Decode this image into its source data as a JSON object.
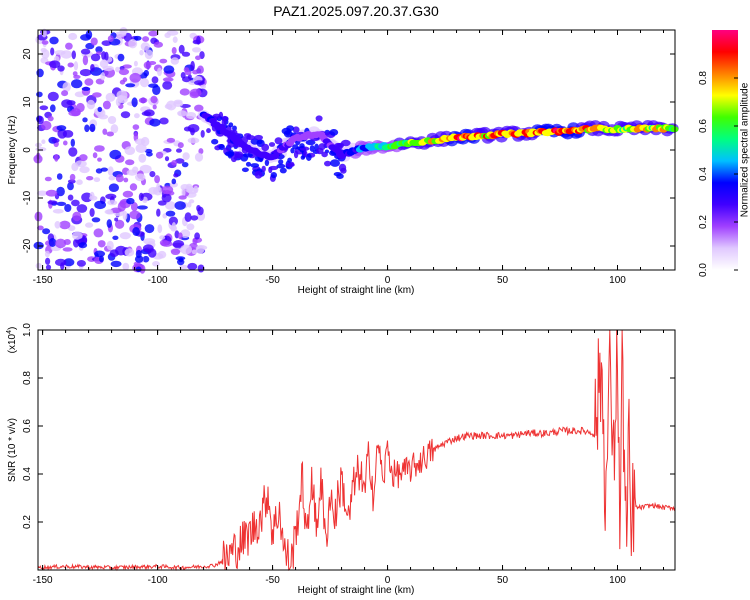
{
  "figure_title": "PAZ1.2025.097.20.37.G30",
  "chart_data": [
    {
      "type": "heatmap",
      "title": "PAZ1.2025.097.20.37.G30",
      "xlabel": "Height of straight line (km)",
      "ylabel": "Frequency (Hz)",
      "xlim": [
        -152,
        125
      ],
      "ylim": [
        -25,
        25
      ],
      "xticks": [
        -150,
        -100,
        -50,
        0,
        50,
        100
      ],
      "yticks": [
        -20,
        -10,
        0,
        10,
        20
      ],
      "xtick_labels": [
        "-150",
        "-100",
        "-50",
        "0",
        "50",
        "100"
      ],
      "ytick_labels": [
        "-20",
        "-10",
        "0",
        "10",
        "20"
      ],
      "noise_region_x": [
        -152,
        -80
      ],
      "signal_track": {
        "x": [
          -80,
          -70,
          -60,
          -50,
          -40,
          -30,
          -20,
          -10,
          0,
          10,
          20,
          30,
          40,
          50,
          60,
          70,
          80,
          90,
          100,
          110,
          125
        ],
        "freq": [
          7.5,
          3.5,
          0,
          -1.5,
          2.5,
          3.5,
          -1,
          0.5,
          0.8,
          1.5,
          2,
          2.6,
          3,
          3.3,
          3.5,
          3.8,
          4,
          4.5,
          4.3,
          4.5,
          4.5
        ],
        "amplitude": [
          0.35,
          0.3,
          0.3,
          0.3,
          0.2,
          0.2,
          0.3,
          0.45,
          0.6,
          0.7,
          0.8,
          0.95,
          0.9,
          0.9,
          0.9,
          0.92,
          0.95,
          0.85,
          0.7,
          0.8,
          0.75
        ]
      },
      "colorbar": {
        "label": "Normalized spectral amplitude",
        "range": [
          0,
          1
        ],
        "ticks": [
          0,
          0.2,
          0.4,
          0.6,
          0.8
        ],
        "tick_labels": [
          "0.0",
          "0.2",
          "0.4",
          "0.6",
          "0.8"
        ],
        "colormap": [
          "#ffffff",
          "#e0c8ff",
          "#a040ff",
          "#4000ff",
          "#0000ff",
          "#00c0ff",
          "#00ff80",
          "#40ff00",
          "#ffff00",
          "#ff8000",
          "#ff0000",
          "#ff0080"
        ]
      }
    },
    {
      "type": "line",
      "xlabel": "Height of straight line (km)",
      "ylabel": "SNR (10 * v/v)",
      "y_multiplier_label": "(x10",
      "y_multiplier_exp": "4",
      "y_multiplier_close": ")",
      "xlim": [
        -152,
        125
      ],
      "ylim": [
        0,
        1
      ],
      "xticks": [
        -150,
        -100,
        -50,
        0,
        50,
        100
      ],
      "yticks": [
        0.2,
        0.4,
        0.6,
        0.8,
        1.0
      ],
      "xtick_labels": [
        "-150",
        "-100",
        "-50",
        "0",
        "50",
        "100"
      ],
      "ytick_labels": [
        "0.2",
        "0.4",
        "0.6",
        "0.8",
        "1.0"
      ],
      "color": "#ee3333",
      "series": [
        {
          "x": [
            -152,
            -140,
            -120,
            -100,
            -90,
            -80,
            -75,
            -70,
            -65,
            -60,
            -55,
            -52,
            -50,
            -47,
            -45,
            -42,
            -40,
            -37,
            -35,
            -33,
            -31,
            -29,
            -27,
            -25,
            -23,
            -20,
            -17,
            -15,
            -12,
            -10,
            -8,
            -6,
            -4,
            -2,
            0,
            2,
            5,
            10,
            15,
            20,
            25,
            30,
            35,
            40,
            45,
            50,
            55,
            60,
            65,
            70,
            75,
            80,
            85,
            90,
            93,
            95,
            97,
            98,
            100,
            101,
            102,
            104,
            105,
            106,
            107,
            108,
            110,
            115,
            120,
            125
          ],
          "y": [
            0.01,
            0.015,
            0.01,
            0.015,
            0.01,
            0.015,
            0.02,
            0.05,
            0.1,
            0.15,
            0.22,
            0.33,
            0.15,
            0.26,
            0.08,
            0.03,
            0.15,
            0.38,
            0.1,
            0.42,
            0.15,
            0.4,
            0.1,
            0.32,
            0.22,
            0.38,
            0.2,
            0.34,
            0.42,
            0.3,
            0.5,
            0.3,
            0.55,
            0.35,
            0.52,
            0.4,
            0.4,
            0.42,
            0.46,
            0.5,
            0.53,
            0.55,
            0.56,
            0.56,
            0.56,
            0.56,
            0.56,
            0.57,
            0.57,
            0.57,
            0.58,
            0.58,
            0.58,
            0.57,
            0.85,
            0.3,
            0.95,
            0.35,
            0.99,
            0.1,
            0.9,
            0.08,
            0.5,
            0.08,
            0.3,
            0.26,
            0.26,
            0.27,
            0.26,
            0.26
          ]
        }
      ]
    }
  ]
}
